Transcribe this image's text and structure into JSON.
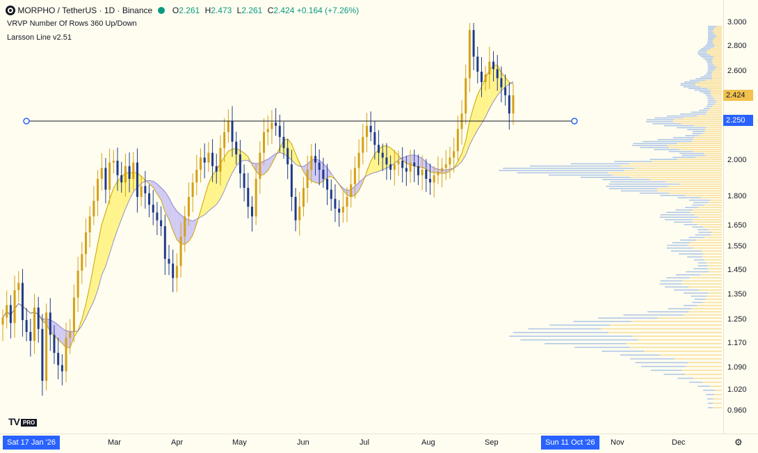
{
  "header": {
    "symbol_title": "MORPHO / TetherUS · 1D · Binance",
    "ohlc": [
      {
        "label": "O",
        "value": "2.261"
      },
      {
        "label": "H",
        "value": "2.473"
      },
      {
        "label": "L",
        "value": "2.261"
      },
      {
        "label": "C",
        "value": "2.424"
      }
    ],
    "change": "+0.164 (+7.26%)"
  },
  "indicators": [
    {
      "name": "VRVP Number Of Rows 360 Up/Down"
    },
    {
      "name": "Larsson Line v2.51"
    }
  ],
  "price_axis": {
    "ticks": [
      "3.000",
      "2.800",
      "2.600",
      "2.000",
      "1.800",
      "1.650",
      "1.550",
      "1.450",
      "1.350",
      "1.250",
      "1.170",
      "1.090",
      "1.020",
      "0.960"
    ],
    "current_price": "2.424",
    "line_price": "2.250"
  },
  "time_axis": {
    "start_label": "Sat 17 Jan '26",
    "months": [
      "Mar",
      "Apr",
      "May",
      "Jun",
      "Jul",
      "Aug",
      "Sep",
      "Nov",
      "Dec"
    ],
    "end_label": "Sun 11 Oct '26"
  },
  "logo": {
    "text": "TV",
    "badge": "PRO"
  },
  "colors": {
    "up": "#d4a017",
    "down": "#1e3a8a",
    "band_bull": "#fff27a",
    "band_bear": "#c9c2f5",
    "vp_up": "#f7d98c",
    "vp_down": "#8fb1e3",
    "accent": "#2962ff"
  },
  "chart_data": {
    "type": "candlestick",
    "horizontal_line": 2.25,
    "price_range": [
      0.94,
      3.0
    ],
    "closes": [
      1.26,
      1.31,
      1.24,
      1.37,
      1.4,
      1.25,
      1.21,
      1.18,
      1.3,
      1.22,
      1.05,
      1.28,
      1.2,
      1.14,
      1.1,
      1.08,
      1.19,
      1.21,
      1.34,
      1.45,
      1.52,
      1.62,
      1.7,
      1.78,
      1.9,
      1.96,
      1.84,
      1.99,
      2.0,
      1.92,
      1.88,
      1.97,
      1.9,
      1.99,
      1.8,
      1.86,
      1.82,
      1.76,
      1.72,
      1.68,
      1.65,
      1.5,
      1.48,
      1.42,
      1.47,
      1.6,
      1.7,
      1.8,
      1.88,
      1.95,
      2.02,
      1.99,
      2.05,
      1.97,
      1.94,
      2.08,
      2.18,
      2.25,
      2.12,
      2.04,
      1.93,
      1.85,
      1.75,
      1.7,
      1.9,
      2.05,
      2.18,
      2.2,
      2.24,
      2.22,
      2.15,
      2.08,
      1.98,
      1.8,
      1.68,
      1.75,
      1.85,
      1.95,
      2.03,
      1.99,
      1.95,
      1.9,
      1.84,
      1.79,
      1.74,
      1.72,
      1.75,
      1.8,
      1.87,
      1.96,
      2.05,
      2.15,
      2.22,
      2.18,
      2.1,
      2.05,
      2.02,
      1.98,
      1.95,
      1.98,
      2.0,
      1.96,
      1.94,
      1.99,
      1.97,
      1.92,
      1.95,
      1.9,
      1.88,
      1.92,
      1.94,
      1.96,
      1.98,
      2.02,
      2.06,
      2.2,
      2.3,
      2.55,
      2.94,
      2.72,
      2.6,
      2.52,
      2.58,
      2.68,
      2.62,
      2.55,
      2.48,
      2.42,
      2.3,
      2.42
    ]
  }
}
